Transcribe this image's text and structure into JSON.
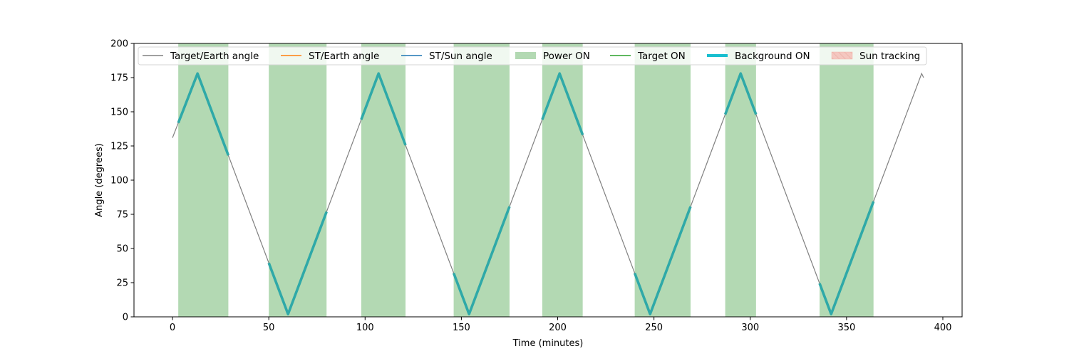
{
  "chart_data": {
    "type": "line",
    "title": "",
    "xlabel": "Time (minutes)",
    "ylabel": "Angle (degrees)",
    "xlim": [
      -20,
      410
    ],
    "ylim": [
      0,
      200
    ],
    "x_ticks": [
      0,
      50,
      100,
      150,
      200,
      250,
      300,
      350,
      400
    ],
    "y_ticks": [
      0,
      25,
      50,
      75,
      100,
      125,
      150,
      175,
      200
    ],
    "grid": false,
    "legend_placement": "top, single row",
    "colors": {
      "target_earth": "#808080",
      "st_earth": "#ff7f0e",
      "st_sun": "#1f77b4",
      "power_on": "#b3d9b3",
      "target_on": "#2ca02c",
      "background_on": "#17becf",
      "sun_tracking": "#f4c7c0"
    },
    "legend": [
      {
        "key": "target_earth",
        "label": "Target/Earth angle",
        "kind": "line"
      },
      {
        "key": "st_earth",
        "label": "ST/Earth angle",
        "kind": "line"
      },
      {
        "key": "st_sun",
        "label": "ST/Sun angle",
        "kind": "line"
      },
      {
        "key": "power_on",
        "label": "Power ON",
        "kind": "patch"
      },
      {
        "key": "target_on",
        "label": "Target ON",
        "kind": "line"
      },
      {
        "key": "background_on",
        "label": "Background ON",
        "kind": "thickline"
      },
      {
        "key": "sun_tracking",
        "label": "Sun tracking",
        "kind": "hatch"
      }
    ],
    "series": [
      {
        "name": "Target/Earth angle",
        "x": [
          0,
          13,
          60,
          107,
          154,
          201,
          248,
          295,
          342,
          389,
          390
        ],
        "y": [
          131,
          178,
          2,
          178,
          2,
          178,
          2,
          178,
          2,
          178,
          175
        ]
      }
    ],
    "power_on_intervals": [
      [
        3,
        29
      ],
      [
        50,
        80
      ],
      [
        98,
        121
      ],
      [
        146,
        175
      ],
      [
        192,
        213
      ],
      [
        240,
        269
      ],
      [
        287,
        303
      ],
      [
        336,
        364
      ]
    ]
  }
}
